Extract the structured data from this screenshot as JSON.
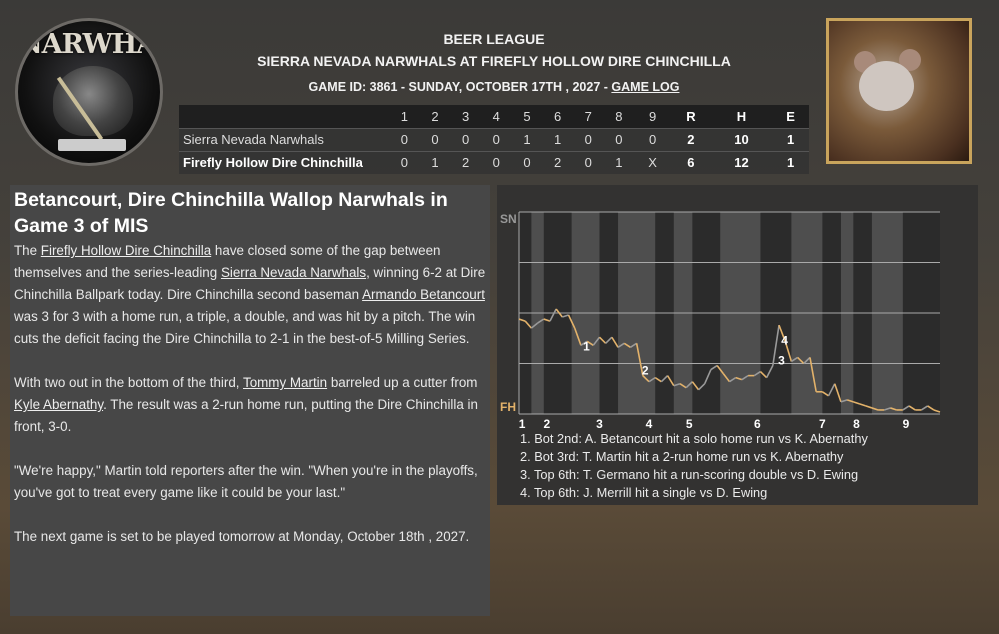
{
  "header": {
    "league": "BEER LEAGUE",
    "matchup": "SIERRA NEVADA NARWHALS AT FIREFLY HOLLOW DIRE CHINCHILLA",
    "game_info": "GAME ID: 3861 - SUNDAY, OCTOBER 17TH , 2027 - ",
    "game_log_link": "GAME LOG"
  },
  "logos": {
    "away_logo_text": "NARWHAL"
  },
  "box_score": {
    "columns": [
      "1",
      "2",
      "3",
      "4",
      "5",
      "6",
      "7",
      "8",
      "9",
      "R",
      "H",
      "E"
    ],
    "rows": [
      {
        "team": "Sierra Nevada Narwhals",
        "innings": [
          "0",
          "0",
          "0",
          "0",
          "1",
          "1",
          "0",
          "0",
          "0"
        ],
        "R": "2",
        "H": "10",
        "E": "1"
      },
      {
        "team": "Firefly Hollow Dire Chinchilla",
        "innings": [
          "0",
          "1",
          "2",
          "0",
          "0",
          "2",
          "0",
          "1",
          "X"
        ],
        "R": "6",
        "H": "12",
        "E": "1"
      }
    ]
  },
  "article": {
    "title": "Betancourt, Dire Chinchilla Wallop Narwhals in Game 3 of MIS",
    "p1": [
      "The ",
      "Firefly Hollow Dire Chinchilla",
      " have closed some of the gap between themselves and the series-leading ",
      "Sierra Nevada Narwhals",
      ", winning 6-2 at Dire Chinchilla Ballpark today. Dire Chinchilla second baseman ",
      "Armando Betancourt",
      " was 3 for 3 with a home run, a triple, a double, and was hit by a pitch. The win cuts the deficit facing the Dire Chinchilla to 2-1 in the best-of-5 Milling Series."
    ],
    "p2": [
      "With two out in the bottom of the third, ",
      "Tommy Martin",
      " barreled up a cutter from ",
      "Kyle Abernathy",
      ". The result was a 2-run home run, putting the Dire Chinchilla in front, 3-0."
    ],
    "p3": "\"We're happy,\" Martin told reporters after the win. \"When you're in the playoffs, you've got to treat every game like it could be your last.\"",
    "p4": "The next game is set to be played tomorrow at Monday, October 18th , 2027."
  },
  "chart_data": {
    "type": "line",
    "top_label": "SN",
    "bottom_label": "FH",
    "ylim": [
      0,
      100
    ],
    "grid": true,
    "colors": {
      "home": "#e3b26a",
      "away": "#9a9a9a",
      "shade": "#4e4e4e",
      "bg": "#2b2b2b"
    },
    "x_ticks": [
      {
        "x": 0.5,
        "label": "1"
      },
      {
        "x": 4.5,
        "label": "2"
      },
      {
        "x": 13,
        "label": "3"
      },
      {
        "x": 21,
        "label": "4"
      },
      {
        "x": 27.5,
        "label": "5"
      },
      {
        "x": 38.5,
        "label": "6"
      },
      {
        "x": 49,
        "label": "7"
      },
      {
        "x": 54.5,
        "label": "8"
      },
      {
        "x": 62.5,
        "label": "9"
      }
    ],
    "shaded_half_innings": [
      [
        2,
        4
      ],
      [
        8.5,
        13
      ],
      [
        16,
        22
      ],
      [
        25,
        28
      ],
      [
        32.5,
        39
      ],
      [
        44,
        49
      ],
      [
        52,
        54
      ],
      [
        57,
        62
      ]
    ],
    "xlim": [
      0,
      68
    ],
    "values": [
      53,
      54,
      57.5,
      55,
      53,
      54,
      48,
      52,
      51,
      57.5,
      66,
      64,
      66,
      62,
      65,
      62,
      67,
      65,
      67,
      65,
      81,
      84,
      82,
      84,
      81,
      86,
      85,
      87,
      84,
      88,
      85,
      78,
      76,
      80,
      84,
      82,
      83,
      81,
      81,
      79,
      82,
      76,
      56,
      64,
      74,
      72,
      75,
      72,
      89,
      89,
      91,
      85,
      94,
      93,
      94,
      95,
      96,
      97,
      98,
      98,
      97,
      98,
      98,
      96,
      98,
      98,
      96,
      98,
      99
    ],
    "event_markers": [
      {
        "x": 11,
        "y": 66,
        "label": "1"
      },
      {
        "x": 20.5,
        "y": 78,
        "label": "2"
      },
      {
        "x": 42.5,
        "y": 73,
        "label": "3"
      },
      {
        "x": 43,
        "y": 63,
        "label": "4"
      }
    ],
    "events": [
      "1. Bot 2nd: A. Betancourt hit a solo home run vs K. Abernathy",
      "2. Bot 3rd: T. Martin hit a 2-run home run vs K. Abernathy",
      "3. Top 6th: T. Germano hit a run-scoring double vs D. Ewing",
      "4. Top 6th: J. Merrill hit a single vs D. Ewing"
    ]
  }
}
